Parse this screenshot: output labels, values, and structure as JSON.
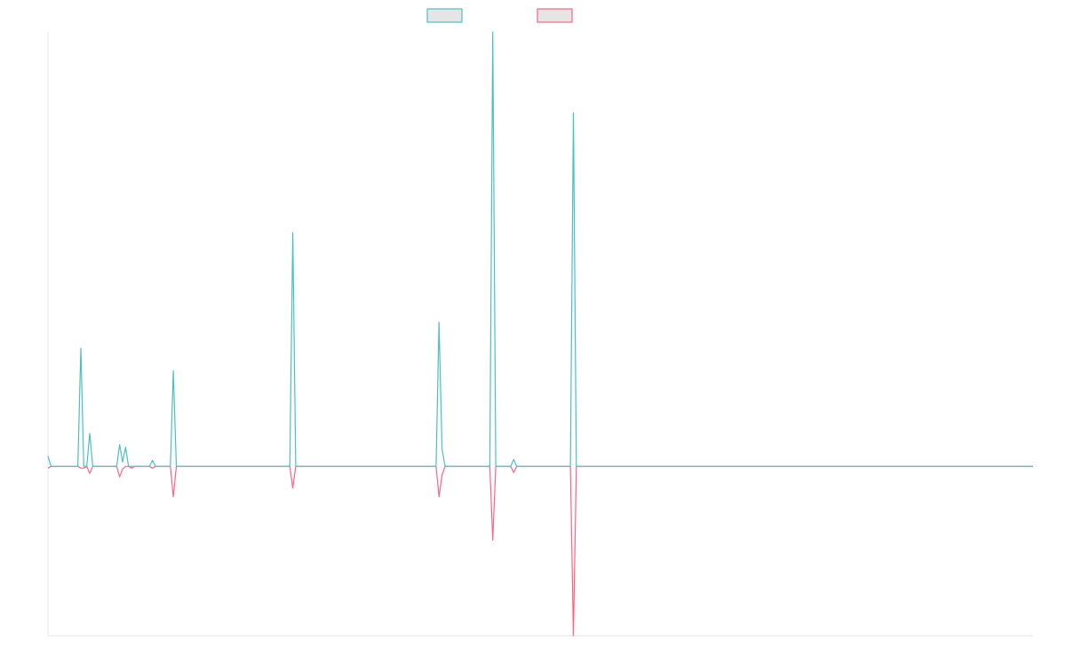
{
  "chart_data": {
    "type": "line",
    "title": "",
    "xlabel": "",
    "ylabel": "",
    "xlim": [
      0,
      330
    ],
    "ylim": [
      -1.95,
      5.0
    ],
    "grid": false,
    "legend_position": "top",
    "x_ticks_shown": false,
    "y_ticks_shown": false,
    "series": [
      {
        "color": "#4bc0c0",
        "legend_fill": "#e5e5e5",
        "points": [
          [
            0,
            0.12
          ],
          [
            11,
            1.36
          ],
          [
            14,
            0.38
          ],
          [
            24,
            0.25
          ],
          [
            25,
            0.05
          ],
          [
            26,
            0.22
          ],
          [
            35,
            0.07
          ],
          [
            42,
            1.1
          ],
          [
            82,
            2.69
          ],
          [
            131,
            1.66
          ],
          [
            132,
            0.2
          ],
          [
            149,
            5.0
          ],
          [
            156,
            0.08
          ],
          [
            176,
            4.07
          ]
        ]
      },
      {
        "color": "#ff6384",
        "legend_fill": "#e5e5e5",
        "points": [
          [
            0,
            -0.02
          ],
          [
            11,
            -0.02
          ],
          [
            12,
            -0.02
          ],
          [
            14,
            -0.08
          ],
          [
            24,
            -0.12
          ],
          [
            25,
            -0.03
          ],
          [
            28,
            -0.02
          ],
          [
            35,
            -0.02
          ],
          [
            42,
            -0.35
          ],
          [
            82,
            -0.25
          ],
          [
            131,
            -0.35
          ],
          [
            132,
            -0.1
          ],
          [
            149,
            -0.85
          ],
          [
            156,
            -0.07
          ],
          [
            176,
            -1.95
          ]
        ]
      }
    ]
  }
}
